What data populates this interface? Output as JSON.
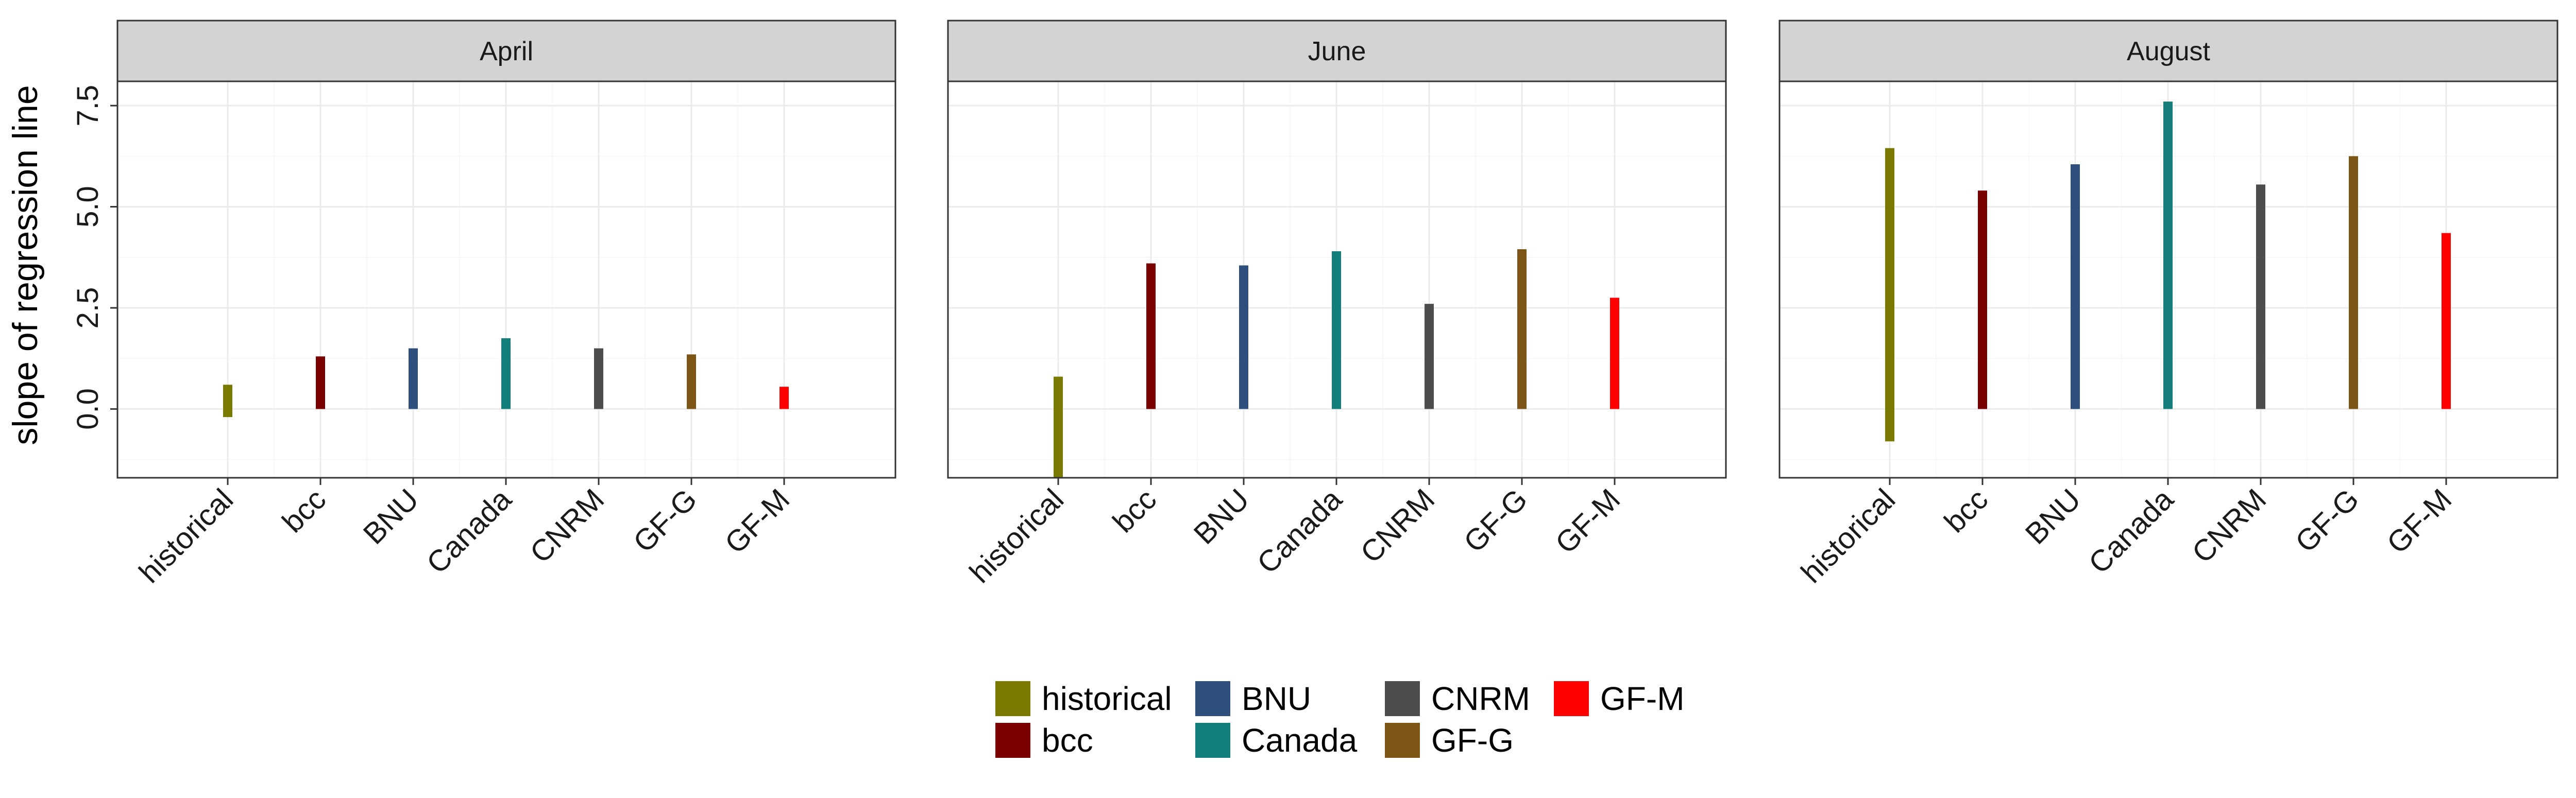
{
  "chart_data": {
    "type": "bar",
    "layout": "faceted",
    "ylabel": "slope of regression line",
    "ylim": [
      -1.7,
      8.1
    ],
    "y_ticks": [
      0.0,
      2.5,
      5.0,
      7.5
    ],
    "y_tick_labels": [
      "0.0",
      "2.5",
      "5.0",
      "7.5"
    ],
    "grid": true,
    "legend_position": "bottom",
    "categories": [
      "historical",
      "bcc",
      "BNU",
      "Canada",
      "CNRM",
      "GF-G",
      "GF-M"
    ],
    "colors": {
      "historical": "#7a7a00",
      "bcc": "#7a0000",
      "BNU": "#2e4f7c",
      "Canada": "#127f7c",
      "CNRM": "#4d4d4d",
      "GF-G": "#7c5517",
      "GF-M": "#ff0000"
    },
    "bar_ranges_note": "each bar is a vertical segment drawn from ymin to ymax",
    "panels": [
      {
        "title": "April",
        "ranges": [
          [
            -0.2,
            0.6
          ],
          [
            0.0,
            1.3
          ],
          [
            0.0,
            1.5
          ],
          [
            0.0,
            1.75
          ],
          [
            0.0,
            1.5
          ],
          [
            0.0,
            1.35
          ],
          [
            0.0,
            0.55
          ]
        ]
      },
      {
        "title": "June",
        "ranges": [
          [
            -1.7,
            0.8
          ],
          [
            0.0,
            3.6
          ],
          [
            0.0,
            3.55
          ],
          [
            0.0,
            3.9
          ],
          [
            0.0,
            2.6
          ],
          [
            0.0,
            3.95
          ],
          [
            0.0,
            2.75
          ]
        ]
      },
      {
        "title": "August",
        "ranges": [
          [
            -0.8,
            6.45
          ],
          [
            0.0,
            5.4
          ],
          [
            0.0,
            6.05
          ],
          [
            0.0,
            7.6
          ],
          [
            0.0,
            5.55
          ],
          [
            0.0,
            6.25
          ],
          [
            0.0,
            4.35
          ]
        ]
      }
    ],
    "legend": {
      "columns": [
        [
          "historical",
          "bcc"
        ],
        [
          "BNU",
          "Canada"
        ],
        [
          "CNRM",
          "GF-G"
        ],
        [
          "GF-M"
        ]
      ]
    }
  }
}
